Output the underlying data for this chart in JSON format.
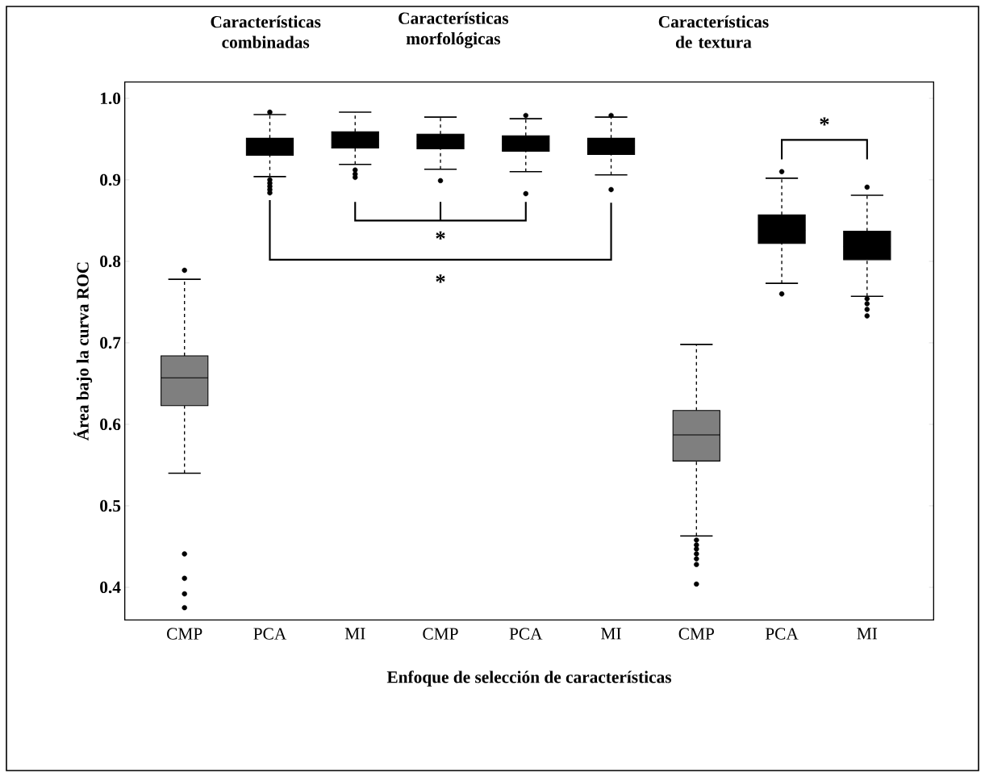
{
  "chart_data": {
    "type": "box",
    "xlabel": "Enfoque de selección de características",
    "ylabel": "Área bajo la curva ROC",
    "categories": [
      "CMP",
      "PCA",
      "MI",
      "CMP",
      "PCA",
      "MI",
      "CMP",
      "PCA",
      "MI"
    ],
    "colors": [
      "#7f7f7f",
      "#000000",
      "#000000",
      "#000000",
      "#000000",
      "#000000",
      "#7f7f7f",
      "#000000",
      "#000000"
    ],
    "boxes": [
      {
        "low": 0.54,
        "q1": 0.623,
        "median": 0.657,
        "q3": 0.684,
        "high": 0.778,
        "outliers": [
          0.789,
          0.441,
          0.411,
          0.392,
          0.375
        ]
      },
      {
        "low": 0.904,
        "q1": 0.93,
        "median": 0.94,
        "q3": 0.951,
        "high": 0.98,
        "outliers": [
          0.983,
          0.9,
          0.896,
          0.892,
          0.888,
          0.884
        ]
      },
      {
        "low": 0.919,
        "q1": 0.939,
        "median": 0.949,
        "q3": 0.959,
        "high": 0.983,
        "outliers": [
          0.912,
          0.907,
          0.903
        ]
      },
      {
        "low": 0.913,
        "q1": 0.938,
        "median": 0.947,
        "q3": 0.956,
        "high": 0.977,
        "outliers": [
          0.899
        ]
      },
      {
        "low": 0.91,
        "q1": 0.935,
        "median": 0.944,
        "q3": 0.954,
        "high": 0.975,
        "outliers": [
          0.979,
          0.883
        ]
      },
      {
        "low": 0.906,
        "q1": 0.931,
        "median": 0.941,
        "q3": 0.951,
        "high": 0.977,
        "outliers": [
          0.979,
          0.888
        ]
      },
      {
        "low": 0.463,
        "q1": 0.555,
        "median": 0.587,
        "q3": 0.617,
        "high": 0.698,
        "outliers": [
          0.458,
          0.452,
          0.447,
          0.441,
          0.435,
          0.428,
          0.404
        ]
      },
      {
        "low": 0.773,
        "q1": 0.822,
        "median": 0.838,
        "q3": 0.857,
        "high": 0.902,
        "outliers": [
          0.91,
          0.76
        ]
      },
      {
        "low": 0.757,
        "q1": 0.802,
        "median": 0.818,
        "q3": 0.837,
        "high": 0.881,
        "outliers": [
          0.891,
          0.754,
          0.748,
          0.741,
          0.733
        ]
      }
    ],
    "ylim": [
      0.36,
      1.02
    ],
    "yticks": [
      {
        "value": 0.4,
        "label": "0.4"
      },
      {
        "value": 0.5,
        "label": "0.5"
      },
      {
        "value": 0.6,
        "label": "0.6"
      },
      {
        "value": 0.7,
        "label": "0.7"
      },
      {
        "value": 0.8,
        "label": "0.8"
      },
      {
        "value": 0.9,
        "label": "0.9"
      },
      {
        "value": 1.0,
        "label": "1.0"
      }
    ],
    "annotations": [
      "Características combinadas",
      "Características morfológicas",
      "Características de textura",
      "*",
      "*",
      "*"
    ],
    "grid": false,
    "marker": "circle"
  }
}
